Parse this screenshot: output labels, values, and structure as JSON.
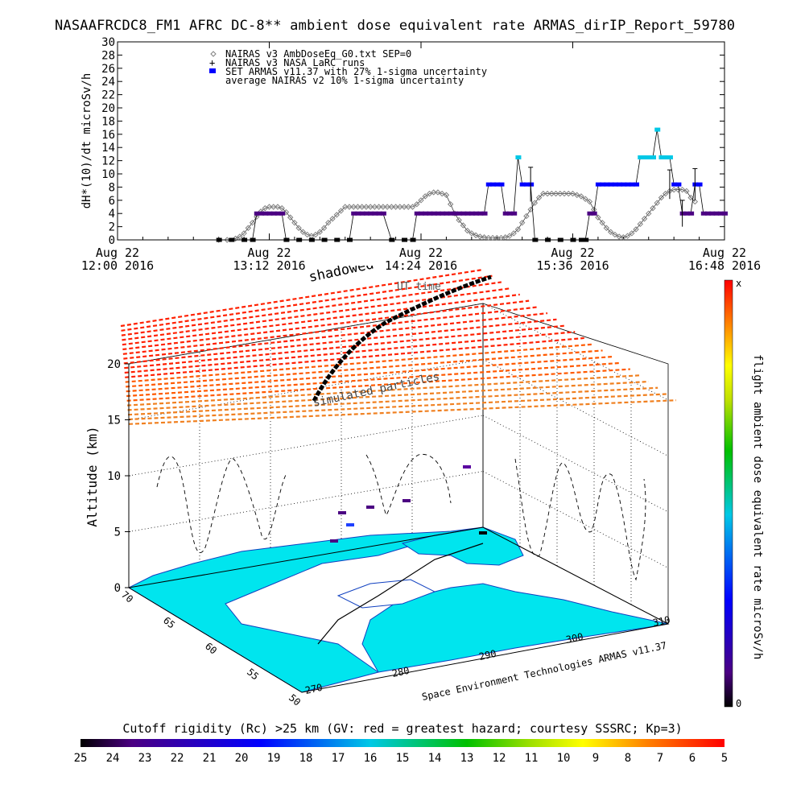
{
  "title": "NASAAFRCDC8_FM1 AFRC DC-8** ambient dose equivalent rate ARMAS_dirIP_Report_59780",
  "colors": {
    "nairas_v3": "#808080",
    "set_armas": "#0000ff",
    "low_dose": "#4b0082",
    "mid_dose": "#1e90ff",
    "high_dose": "#00c8e6",
    "hazard_red": "#ff0000",
    "land_cyan": "#00e5ee"
  },
  "chart_data": [
    {
      "type": "scatter",
      "ylabel": "dH*(10)/dt microSv/h",
      "ylim": [
        0,
        30
      ],
      "yticks": [
        0,
        2,
        4,
        6,
        8,
        10,
        12,
        14,
        16,
        18,
        20,
        22,
        24,
        26,
        28,
        30
      ],
      "xlim_minutes": [
        0,
        288
      ],
      "xticks": [
        {
          "line1": "Aug 22",
          "line2": "12:00 2016"
        },
        {
          "line1": "Aug 22",
          "line2": "13:12 2016"
        },
        {
          "line1": "Aug 22",
          "line2": "14:24 2016"
        },
        {
          "line1": "Aug 22",
          "line2": "15:36 2016"
        },
        {
          "line1": "Aug 22",
          "line2": "16:48 2016"
        }
      ],
      "legend": [
        {
          "symbol": "◇",
          "label": "NAIRAS v3 AmbDoseEq_G0.txt SEP=0"
        },
        {
          "symbol": "+",
          "label": "NAIRAS v3 NASA LaRC runs"
        },
        {
          "symbol": "■",
          "label": "SET ARMAS v11.37 with 27% 1-sigma uncertainty"
        },
        {
          "symbol": "",
          "label": "average NAIRAS v2 10% 1-sigma uncertainty"
        }
      ],
      "series": [
        {
          "name": "NAIRAS v3 AmbDoseEq_G0.txt SEP=0",
          "points": [
            [
              48,
              0
            ],
            [
              52,
              0
            ],
            [
              56,
              0.2
            ],
            [
              58,
              0.5
            ],
            [
              60,
              1
            ],
            [
              62,
              1.8
            ],
            [
              64,
              2.6
            ],
            [
              66,
              3.5
            ],
            [
              68,
              4.3
            ],
            [
              70,
              4.8
            ],
            [
              72,
              5
            ],
            [
              74,
              5
            ],
            [
              76,
              5
            ],
            [
              78,
              4.8
            ],
            [
              80,
              4.2
            ],
            [
              82,
              3.4
            ],
            [
              84,
              2.6
            ],
            [
              86,
              1.8
            ],
            [
              88,
              1.2
            ],
            [
              90,
              0.8
            ],
            [
              92,
              0.6
            ],
            [
              94,
              0.8
            ],
            [
              96,
              1.2
            ],
            [
              98,
              1.8
            ],
            [
              100,
              2.6
            ],
            [
              102,
              3.2
            ],
            [
              104,
              3.8
            ],
            [
              106,
              4.4
            ],
            [
              108,
              5
            ],
            [
              110,
              5
            ],
            [
              112,
              5
            ],
            [
              114,
              5
            ],
            [
              116,
              5
            ],
            [
              118,
              5
            ],
            [
              120,
              5
            ],
            [
              122,
              5
            ],
            [
              124,
              5
            ],
            [
              126,
              5
            ],
            [
              128,
              5
            ],
            [
              130,
              5
            ],
            [
              132,
              5
            ],
            [
              134,
              5
            ],
            [
              136,
              5
            ],
            [
              138,
              5
            ],
            [
              140,
              5
            ],
            [
              142,
              5.4
            ],
            [
              144,
              6
            ],
            [
              146,
              6.6
            ],
            [
              148,
              7
            ],
            [
              150,
              7.2
            ],
            [
              152,
              7.2
            ],
            [
              154,
              7
            ],
            [
              156,
              6.8
            ],
            [
              158,
              5.4
            ],
            [
              160,
              4
            ],
            [
              162,
              3
            ],
            [
              164,
              2.2
            ],
            [
              166,
              1.4
            ],
            [
              168,
              1
            ],
            [
              170,
              0.7
            ],
            [
              172,
              0.5
            ],
            [
              174,
              0.4
            ],
            [
              176,
              0.3
            ],
            [
              178,
              0.3
            ],
            [
              180,
              0.3
            ],
            [
              182,
              0.3
            ],
            [
              184,
              0.4
            ],
            [
              186,
              0.6
            ],
            [
              188,
              1
            ],
            [
              190,
              1.6
            ],
            [
              192,
              2.6
            ],
            [
              194,
              3.6
            ],
            [
              196,
              4.6
            ],
            [
              198,
              5.6
            ],
            [
              200,
              6.4
            ],
            [
              202,
              7
            ],
            [
              204,
              7
            ],
            [
              206,
              7
            ],
            [
              208,
              7
            ],
            [
              210,
              7
            ],
            [
              212,
              7
            ],
            [
              214,
              7
            ],
            [
              216,
              7
            ],
            [
              218,
              6.8
            ],
            [
              220,
              6.6
            ],
            [
              222,
              6.2
            ],
            [
              224,
              5.8
            ],
            [
              226,
              4.6
            ],
            [
              228,
              3.4
            ],
            [
              230,
              2.6
            ],
            [
              232,
              1.8
            ],
            [
              234,
              1.2
            ],
            [
              236,
              0.8
            ],
            [
              238,
              0.5
            ],
            [
              240,
              0.4
            ],
            [
              242,
              0.6
            ],
            [
              244,
              1
            ],
            [
              246,
              1.6
            ],
            [
              248,
              2.4
            ],
            [
              250,
              3.2
            ],
            [
              252,
              4
            ],
            [
              254,
              4.8
            ],
            [
              256,
              5.6
            ],
            [
              258,
              6.4
            ],
            [
              260,
              7
            ],
            [
              262,
              7.4
            ],
            [
              264,
              7.6
            ],
            [
              266,
              7.6
            ],
            [
              268,
              7.6
            ],
            [
              270,
              7.4
            ],
            [
              272,
              6.4
            ],
            [
              274,
              5.8
            ]
          ]
        },
        {
          "name": "SET ARMAS v11.37 with 27% 1-sigma uncertainty",
          "points": [
            [
              48,
              0
            ],
            [
              54,
              0
            ],
            [
              60,
              0
            ],
            [
              64,
              0
            ],
            [
              66,
              4
            ],
            [
              68,
              4
            ],
            [
              70,
              4
            ],
            [
              72,
              4
            ],
            [
              74,
              4
            ],
            [
              76,
              4
            ],
            [
              78,
              4
            ],
            [
              80,
              0
            ],
            [
              86,
              0
            ],
            [
              92,
              0
            ],
            [
              98,
              0
            ],
            [
              104,
              0
            ],
            [
              110,
              0
            ],
            [
              112,
              4
            ],
            [
              114,
              4
            ],
            [
              116,
              4
            ],
            [
              118,
              4
            ],
            [
              120,
              4
            ],
            [
              122,
              4
            ],
            [
              124,
              4
            ],
            [
              126,
              4
            ],
            [
              130,
              0
            ],
            [
              136,
              0
            ],
            [
              140,
              0
            ],
            [
              142,
              4
            ],
            [
              144,
              4
            ],
            [
              146,
              4
            ],
            [
              148,
              4
            ],
            [
              150,
              4
            ],
            [
              152,
              4
            ],
            [
              154,
              4
            ],
            [
              156,
              4
            ],
            [
              158,
              4
            ],
            [
              160,
              4
            ],
            [
              162,
              4
            ],
            [
              164,
              4
            ],
            [
              166,
              4
            ],
            [
              168,
              4
            ],
            [
              170,
              4
            ],
            [
              172,
              4
            ],
            [
              174,
              4
            ],
            [
              176,
              8.4
            ],
            [
              178,
              8.4
            ],
            [
              180,
              8.4
            ],
            [
              182,
              8.4
            ],
            [
              184,
              4
            ],
            [
              186,
              4
            ],
            [
              188,
              4
            ],
            [
              190,
              12.5
            ],
            [
              192,
              8.4
            ],
            [
              194,
              8.4
            ],
            [
              196,
              8.4
            ],
            [
              198,
              0
            ],
            [
              204,
              0
            ],
            [
              210,
              0
            ],
            [
              216,
              0
            ],
            [
              220,
              0
            ],
            [
              222,
              0
            ],
            [
              224,
              4
            ],
            [
              226,
              4
            ],
            [
              228,
              8.4
            ],
            [
              230,
              8.4
            ],
            [
              232,
              8.4
            ],
            [
              234,
              8.4
            ],
            [
              236,
              8.4
            ],
            [
              238,
              8.4
            ],
            [
              240,
              8.4
            ],
            [
              242,
              8.4
            ],
            [
              244,
              8.4
            ],
            [
              246,
              8.4
            ],
            [
              248,
              12.5
            ],
            [
              250,
              12.5
            ],
            [
              252,
              12.5
            ],
            [
              254,
              12.5
            ],
            [
              256,
              16.7
            ],
            [
              258,
              12.5
            ],
            [
              260,
              12.5
            ],
            [
              262,
              12.5
            ],
            [
              264,
              8.4
            ],
            [
              266,
              8.4
            ],
            [
              268,
              4
            ],
            [
              270,
              4
            ],
            [
              272,
              4
            ],
            [
              274,
              8.4
            ],
            [
              276,
              8.4
            ],
            [
              278,
              4
            ],
            [
              280,
              4
            ],
            [
              282,
              4
            ],
            [
              284,
              4
            ],
            [
              286,
              4
            ],
            [
              288,
              4
            ]
          ]
        }
      ]
    },
    {
      "type": "scatter",
      "title": "shadowed flight path",
      "annotation": "UT time",
      "zlabel": "Altitude (km)",
      "zticks": [
        "0",
        "5",
        "10",
        "15",
        "20"
      ],
      "lat_ticks": [
        "70",
        "65",
        "60",
        "55",
        "50"
      ],
      "lon_ticks": [
        "270",
        "280",
        "290",
        "300",
        "310"
      ],
      "center_label": "simulated particles",
      "credit": "Space Environment Technologies ARMAS v11.37",
      "colorbar": {
        "label": "flight ambient dose equivalent rate microSv/h",
        "top": "x",
        "bottom": "0"
      }
    }
  ],
  "cutoff_bar": {
    "caption": "Cutoff rigidity (Rc) >25 km (GV: red = greatest hazard; courtesy SSSRC; Kp=3)",
    "ticks": [
      "25",
      "24",
      "23",
      "22",
      "21",
      "20",
      "19",
      "18",
      "17",
      "16",
      "15",
      "14",
      "13",
      "12",
      "11",
      "10",
      "9",
      "8",
      "7",
      "6",
      "5"
    ]
  }
}
